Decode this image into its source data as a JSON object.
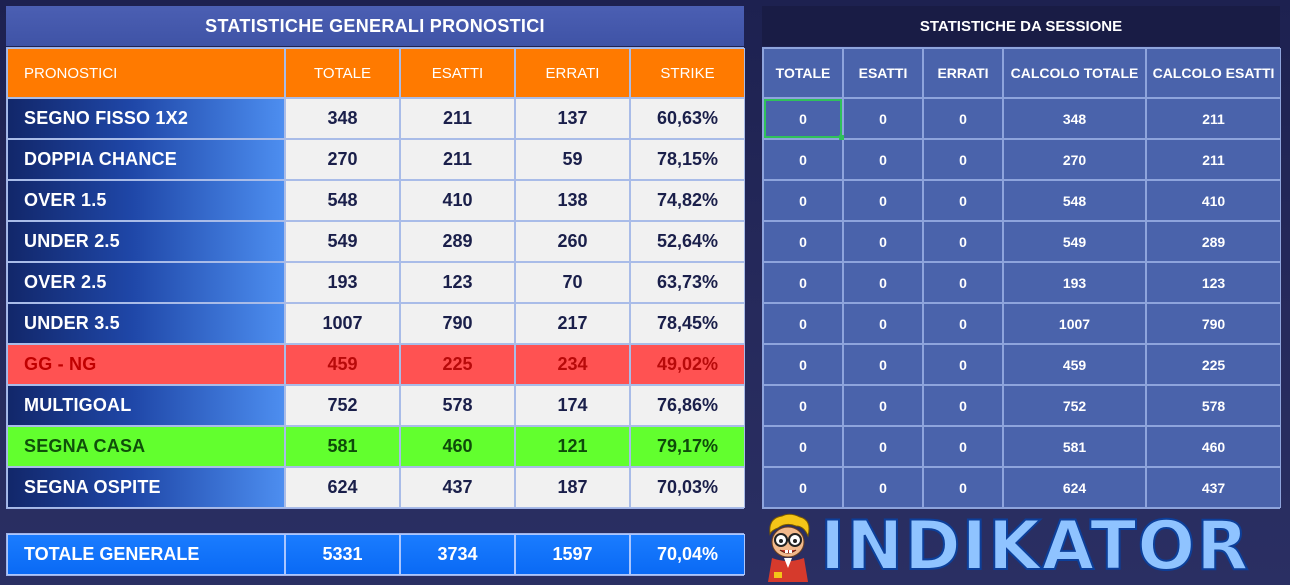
{
  "left": {
    "title": "STATISTICHE GENERALI PRONOSTICI",
    "headers": [
      "PRONOSTICI",
      "TOTALE",
      "ESATTI",
      "ERRATI",
      "STRIKE"
    ],
    "rows": [
      {
        "label": "SEGNO FISSO 1X2",
        "totale": "348",
        "esatti": "211",
        "errati": "137",
        "strike": "60,63%"
      },
      {
        "label": "DOPPIA CHANCE",
        "totale": "270",
        "esatti": "211",
        "errati": "59",
        "strike": "78,15%"
      },
      {
        "label": "OVER 1.5",
        "totale": "548",
        "esatti": "410",
        "errati": "138",
        "strike": "74,82%"
      },
      {
        "label": "UNDER 2.5",
        "totale": "549",
        "esatti": "289",
        "errati": "260",
        "strike": "52,64%"
      },
      {
        "label": "OVER 2.5",
        "totale": "193",
        "esatti": "123",
        "errati": "70",
        "strike": "63,73%"
      },
      {
        "label": "UNDER 3.5",
        "totale": "1007",
        "esatti": "790",
        "errati": "217",
        "strike": "78,45%"
      },
      {
        "label": "GG - NG",
        "totale": "459",
        "esatti": "225",
        "errati": "234",
        "strike": "49,02%"
      },
      {
        "label": "MULTIGOAL",
        "totale": "752",
        "esatti": "578",
        "errati": "174",
        "strike": "76,86%"
      },
      {
        "label": "SEGNA CASA",
        "totale": "581",
        "esatti": "460",
        "errati": "121",
        "strike": "79,17%"
      },
      {
        "label": "SEGNA OSPITE",
        "totale": "624",
        "esatti": "437",
        "errati": "187",
        "strike": "70,03%"
      }
    ]
  },
  "total": {
    "label": "TOTALE GENERALE",
    "totale": "5331",
    "esatti": "3734",
    "errati": "1597",
    "strike": "70,04%"
  },
  "right": {
    "title": "STATISTICHE DA SESSIONE",
    "headers": [
      "TOTALE",
      "ESATTI",
      "ERRATI",
      "CALCOLO TOTALE",
      "CALCOLO ESATTI"
    ],
    "rows": [
      [
        "0",
        "0",
        "0",
        "348",
        "211"
      ],
      [
        "0",
        "0",
        "0",
        "270",
        "211"
      ],
      [
        "0",
        "0",
        "0",
        "548",
        "410"
      ],
      [
        "0",
        "0",
        "0",
        "549",
        "289"
      ],
      [
        "0",
        "0",
        "0",
        "193",
        "123"
      ],
      [
        "0",
        "0",
        "0",
        "1007",
        "790"
      ],
      [
        "0",
        "0",
        "0",
        "459",
        "225"
      ],
      [
        "0",
        "0",
        "0",
        "752",
        "578"
      ],
      [
        "0",
        "0",
        "0",
        "581",
        "460"
      ],
      [
        "0",
        "0",
        "0",
        "624",
        "437"
      ]
    ]
  },
  "logo": {
    "text": "INDIKATOR",
    "icon": "nerd-mascot-icon"
  },
  "colors": {
    "header_orange": "#ff7a00",
    "row_red": "#ff5252",
    "row_green": "#62ff2e",
    "total_blue": "#0a6af5",
    "session_blue": "#4a63ab"
  }
}
